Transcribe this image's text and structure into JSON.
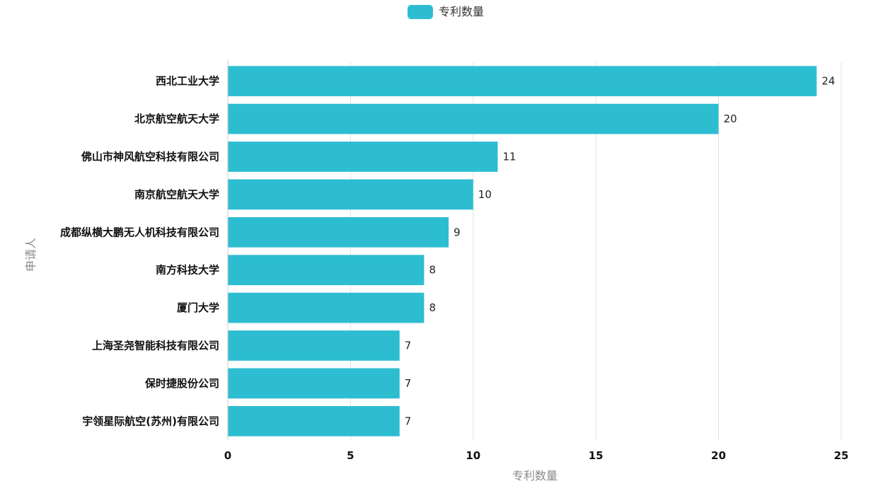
{
  "legend": {
    "label": "专利数量",
    "color": "#2dbdd1"
  },
  "chart_data": {
    "type": "bar",
    "orientation": "horizontal",
    "categories": [
      "西北工业大学",
      "北京航空航天大学",
      "佛山市神风航空科技有限公司",
      "南京航空航天大学",
      "成都纵横大鹏无人机科技有限公司",
      "南方科技大学",
      "厦门大学",
      "上海圣尧智能科技有限公司",
      "保时捷股份公司",
      "宇领星际航空(苏州)有限公司"
    ],
    "series": [
      {
        "name": "专利数量",
        "values": [
          24,
          20,
          11,
          10,
          9,
          8,
          8,
          7,
          7,
          7
        ]
      }
    ],
    "xlabel": "专利数量",
    "ylabel": "申请人",
    "xlim": [
      0,
      25
    ],
    "xticks": [
      0,
      5,
      10,
      15,
      20,
      25
    ],
    "grid": true,
    "legend_position": "top-center",
    "bar_color": "#2dbdd1"
  }
}
